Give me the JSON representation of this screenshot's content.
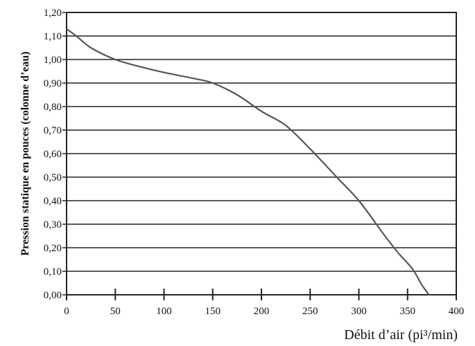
{
  "chart_data": {
    "type": "line",
    "title": "",
    "xlabel": "Débit d’air (pi³/min)",
    "ylabel": "Pression statique en pouces (colonne d’eau)",
    "xlim": [
      0,
      400
    ],
    "ylim": [
      0,
      1.2
    ],
    "x_ticks": [
      0,
      50,
      100,
      150,
      200,
      250,
      300,
      350,
      400
    ],
    "x_tick_labels": [
      "0",
      "50",
      "100",
      "150",
      "200",
      "250",
      "300",
      "350",
      "400"
    ],
    "y_ticks": [
      0,
      0.1,
      0.2,
      0.3,
      0.4,
      0.5,
      0.6,
      0.7,
      0.8,
      0.9,
      1.0,
      1.1,
      1.2
    ],
    "y_tick_labels": [
      "0,00",
      "0,10",
      "0,20",
      "0,30",
      "0,40",
      "0,50",
      "0,60",
      "0,70",
      "0,80",
      "0,90",
      "1,00",
      "1,10",
      "1,20"
    ],
    "grid": "horizontal",
    "series": [
      {
        "x": [
          0,
          10,
          25,
          50,
          75,
          100,
          130,
          150,
          175,
          200,
          225,
          250,
          275,
          300,
          325,
          340,
          355,
          365,
          372
        ],
        "y": [
          1.13,
          1.1,
          1.05,
          1.0,
          0.97,
          0.945,
          0.92,
          0.9,
          0.85,
          0.78,
          0.72,
          0.62,
          0.51,
          0.4,
          0.26,
          0.18,
          0.11,
          0.04,
          0.0
        ],
        "color": "#555555"
      }
    ]
  }
}
